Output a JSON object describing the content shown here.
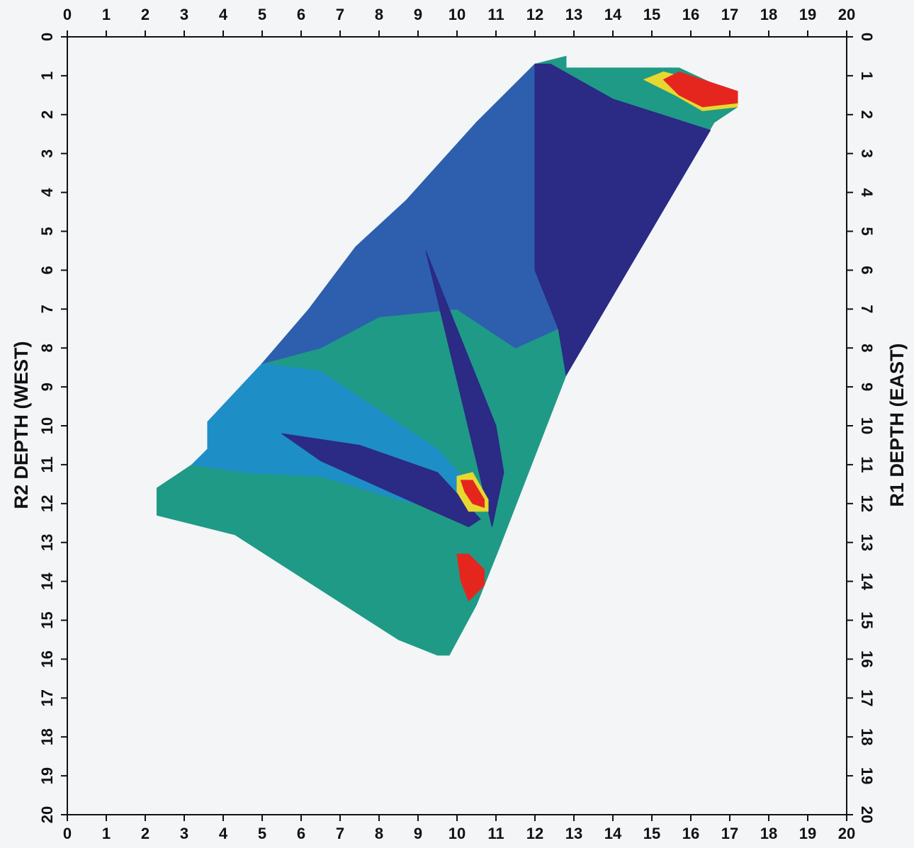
{
  "chart_data": {
    "type": "polygon-map",
    "y_label": "R2 DEPTH (WEST)",
    "y2_label": "R1 DEPTH (EAST)",
    "xlim": [
      0,
      20
    ],
    "ylim": [
      20,
      0
    ],
    "xticks": [
      0,
      1,
      2,
      3,
      4,
      5,
      6,
      7,
      8,
      9,
      10,
      11,
      12,
      13,
      14,
      15,
      16,
      17,
      18,
      19,
      20
    ],
    "yticks": [
      0,
      1,
      2,
      3,
      4,
      5,
      6,
      7,
      8,
      9,
      10,
      11,
      12,
      13,
      14,
      15,
      16,
      17,
      18,
      19,
      20
    ],
    "series": [
      {
        "color": "#1f9a86",
        "x": [
          12,
          12.8,
          12.8,
          15.7,
          17.2,
          17.2,
          16.6,
          12.8,
          11.1,
          10.5,
          9.8,
          9.5,
          8.5,
          4.3,
          2.3,
          2.3,
          3.2,
          3.6,
          3.6,
          5,
          6.2,
          7.4,
          8.7,
          10.5
        ],
        "y": [
          0.7,
          0.5,
          0.8,
          0.8,
          1.5,
          1.8,
          2.2,
          8.7,
          13.1,
          14.6,
          15.9,
          15.9,
          15.5,
          12.8,
          12.3,
          11.6,
          11,
          10.6,
          9.9,
          8.4,
          7,
          5.4,
          4.2,
          2.2
        ]
      },
      {
        "color": "#1e8ec6",
        "x": [
          3.6,
          5,
          6.5,
          8,
          9.5,
          10.6,
          10.2,
          8.5,
          6.5,
          4.5,
          3.2,
          3.6
        ],
        "y": [
          9.9,
          8.4,
          8.6,
          9.6,
          10.6,
          11.8,
          12.3,
          11.9,
          11.3,
          11.2,
          11,
          10.6
        ]
      },
      {
        "color": "#2d5fae",
        "x": [
          12,
          12,
          12.6,
          11.5,
          10,
          8,
          6.5,
          5,
          6.2,
          7.4,
          8.7,
          10.5
        ],
        "y": [
          0.7,
          6,
          7.5,
          8,
          7,
          7.2,
          8,
          8.4,
          7,
          5.4,
          4.2,
          2.2
        ]
      },
      {
        "color": "#2b2a84",
        "x": [
          12,
          12.4,
          14,
          16.5,
          12.8,
          12.6,
          12
        ],
        "y": [
          0.7,
          0.7,
          1.6,
          2.4,
          8.7,
          7.5,
          6
        ]
      },
      {
        "color": "#2b2a84",
        "x": [
          5.5,
          7.5,
          9.5,
          10.6,
          10.3,
          8.5,
          6.5
        ],
        "y": [
          10.2,
          10.5,
          11.2,
          12.4,
          12.6,
          11.8,
          10.9
        ]
      },
      {
        "color": "#2b2a84",
        "x": [
          9.2,
          10,
          11,
          11.2,
          10.9,
          10.4,
          9.8
        ],
        "y": [
          5.5,
          7.5,
          10,
          11.2,
          12.6,
          10.5,
          8
        ]
      },
      {
        "color": "#e6d830",
        "x": [
          10.0,
          10.4,
          10.8,
          10.8,
          10.3,
          10.0
        ],
        "y": [
          11.3,
          11.2,
          11.9,
          12.2,
          12.2,
          11.7
        ]
      },
      {
        "color": "#e5261f",
        "x": [
          10.1,
          10.4,
          10.7,
          10.7,
          10.4,
          10.2
        ],
        "y": [
          11.4,
          11.4,
          11.9,
          12.1,
          12.0,
          11.7
        ]
      },
      {
        "color": "#e5261f",
        "x": [
          10.0,
          10.3,
          10.7,
          10.7,
          10.3,
          10.1
        ],
        "y": [
          13.3,
          13.3,
          13.7,
          14.1,
          14.5,
          14.0
        ]
      },
      {
        "color": "#e6d830",
        "x": [
          14.8,
          15.3,
          17.2,
          17.2,
          16.3,
          15.6
        ],
        "y": [
          1.1,
          0.9,
          1.4,
          1.8,
          1.9,
          1.5
        ]
      },
      {
        "color": "#e5261f",
        "x": [
          15.3,
          15.7,
          17.2,
          17.2,
          16.3,
          15.7
        ],
        "y": [
          1.1,
          0.9,
          1.4,
          1.7,
          1.8,
          1.5
        ]
      }
    ]
  }
}
